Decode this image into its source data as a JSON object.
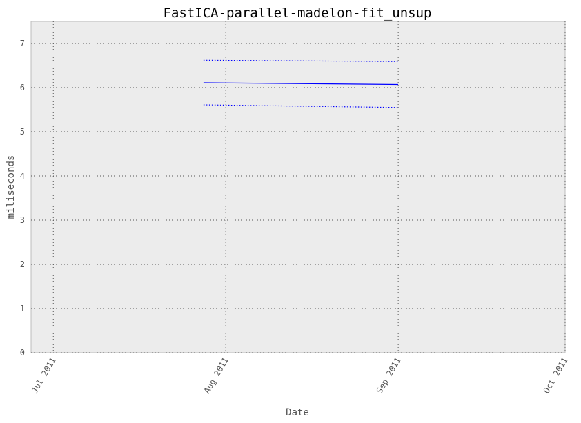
{
  "chart_data": {
    "type": "line",
    "title": "FastICA-parallel-madelon-fit_unsup",
    "xlabel": "Date",
    "ylabel": "miliseconds",
    "ylim": [
      0,
      7.5
    ],
    "yticks": [
      0,
      1,
      2,
      3,
      4,
      5,
      6,
      7
    ],
    "xlim": [
      "2011-06-27",
      "2011-10-01"
    ],
    "xticks": [
      {
        "date": "2011-07-01",
        "label": "Jul 2011"
      },
      {
        "date": "2011-08-01",
        "label": "Aug 2011"
      },
      {
        "date": "2011-09-01",
        "label": "Sep 2011"
      },
      {
        "date": "2011-10-01",
        "label": "Oct 2011"
      }
    ],
    "grid": true,
    "background": "#ececec",
    "series": [
      {
        "role": "mean",
        "style": "solid",
        "color": "#0000ff",
        "points": [
          {
            "x": "2011-07-28",
            "y": 6.11
          },
          {
            "x": "2011-09-01",
            "y": 6.07
          }
        ]
      },
      {
        "role": "upper",
        "style": "dotted",
        "color": "#0000ff",
        "points": [
          {
            "x": "2011-07-28",
            "y": 6.62
          },
          {
            "x": "2011-09-01",
            "y": 6.59
          }
        ]
      },
      {
        "role": "lower",
        "style": "dotted",
        "color": "#0000ff",
        "points": [
          {
            "x": "2011-07-28",
            "y": 5.61
          },
          {
            "x": "2011-09-01",
            "y": 5.55
          }
        ]
      }
    ]
  }
}
